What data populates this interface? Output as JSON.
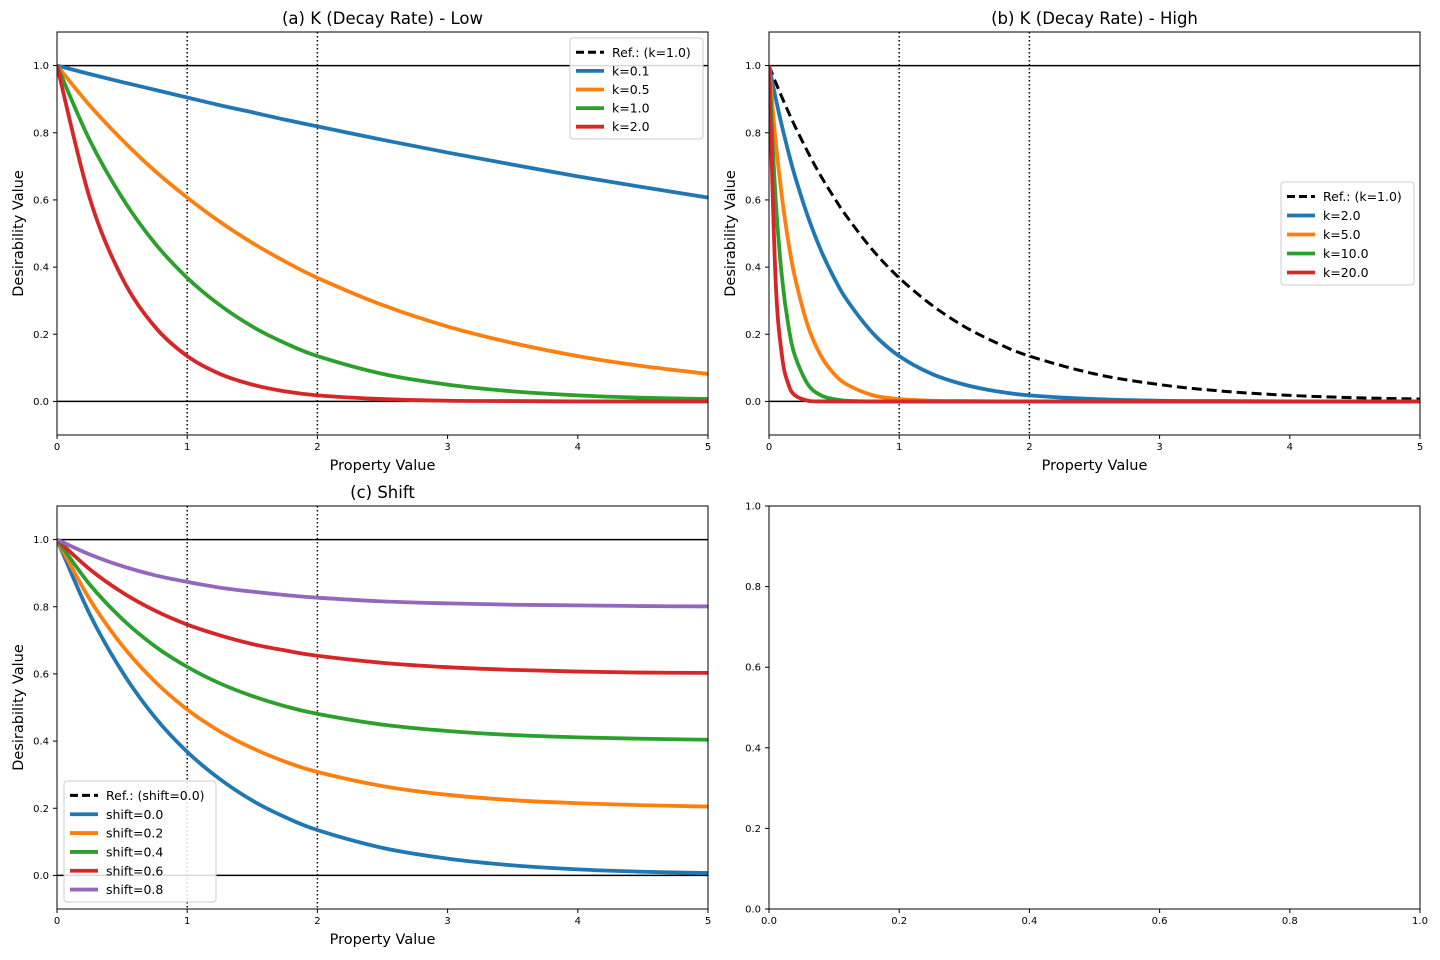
{
  "colors": {
    "ref": "#000000",
    "c0": "#1f77b4",
    "c1": "#ff7f0e",
    "c2": "#2ca02c",
    "c3": "#d62728",
    "c4": "#9467bd"
  },
  "chart_data": [
    {
      "type": "line",
      "title": "(a) K (Decay Rate) - Low",
      "xlabel": "Property Value",
      "ylabel": "Desirability Value",
      "xlim": [
        0,
        5
      ],
      "ylim": [
        -0.1,
        1.1
      ],
      "xticks": [
        0,
        1,
        2,
        3,
        4,
        5
      ],
      "yticks": [
        0.0,
        0.2,
        0.4,
        0.6,
        0.8,
        1.0
      ],
      "xtick_labels": [
        "0",
        "1",
        "2",
        "3",
        "4",
        "5"
      ],
      "ytick_labels": [
        "0.0",
        "0.2",
        "0.4",
        "0.6",
        "0.8",
        "1.0"
      ],
      "hlines": [
        0,
        1
      ],
      "vlines": [
        1,
        2
      ],
      "legend_position": "upper-right",
      "x": [
        0,
        0.25,
        0.5,
        0.75,
        1,
        1.25,
        1.5,
        1.75,
        2,
        2.5,
        3,
        3.5,
        4,
        4.5,
        5
      ],
      "series": [
        {
          "name": "Ref.: (k=1.0)",
          "color_key": "ref",
          "dashed": true,
          "values": [
            1.0,
            0.779,
            0.607,
            0.472,
            0.368,
            0.287,
            0.223,
            0.174,
            0.135,
            0.082,
            0.05,
            0.03,
            0.018,
            0.011,
            0.007
          ]
        },
        {
          "name": "k=0.1",
          "color_key": "c0",
          "values": [
            1.0,
            0.975,
            0.951,
            0.928,
            0.905,
            0.882,
            0.861,
            0.839,
            0.819,
            0.779,
            0.741,
            0.705,
            0.67,
            0.638,
            0.607
          ]
        },
        {
          "name": "k=0.5",
          "color_key": "c1",
          "values": [
            1.0,
            0.882,
            0.779,
            0.687,
            0.607,
            0.535,
            0.472,
            0.417,
            0.368,
            0.287,
            0.223,
            0.174,
            0.135,
            0.105,
            0.082
          ]
        },
        {
          "name": "k=1.0",
          "color_key": "c2",
          "values": [
            1.0,
            0.779,
            0.607,
            0.472,
            0.368,
            0.287,
            0.223,
            0.174,
            0.135,
            0.082,
            0.05,
            0.03,
            0.018,
            0.011,
            0.007
          ]
        },
        {
          "name": "k=2.0",
          "color_key": "c3",
          "values": [
            1.0,
            0.607,
            0.368,
            0.223,
            0.135,
            0.082,
            0.05,
            0.03,
            0.018,
            0.007,
            0.002,
            0.001,
            0.0,
            0.0,
            0.0
          ]
        }
      ]
    },
    {
      "type": "line",
      "title": "(b) K (Decay Rate) - High",
      "xlabel": "Property Value",
      "ylabel": "Desirability Value",
      "xlim": [
        0,
        5
      ],
      "ylim": [
        -0.1,
        1.1
      ],
      "xticks": [
        0,
        1,
        2,
        3,
        4,
        5
      ],
      "yticks": [
        0.0,
        0.2,
        0.4,
        0.6,
        0.8,
        1.0
      ],
      "xtick_labels": [
        "0",
        "1",
        "2",
        "3",
        "4",
        "5"
      ],
      "ytick_labels": [
        "0.0",
        "0.2",
        "0.4",
        "0.6",
        "0.8",
        "1.0"
      ],
      "hlines": [
        0,
        1
      ],
      "vlines": [
        1,
        2
      ],
      "legend_position": "center-right",
      "x": [
        0,
        0.05,
        0.1,
        0.15,
        0.2,
        0.3,
        0.4,
        0.5,
        0.6,
        0.8,
        1,
        1.25,
        1.5,
        1.75,
        2,
        2.5,
        3,
        3.5,
        4,
        4.5,
        5
      ],
      "series": [
        {
          "name": "Ref.: (k=1.0)",
          "color_key": "ref",
          "dashed": true,
          "values": [
            1.0,
            0.951,
            0.905,
            0.861,
            0.819,
            0.741,
            0.67,
            0.607,
            0.549,
            0.449,
            0.368,
            0.287,
            0.223,
            0.174,
            0.135,
            0.082,
            0.05,
            0.03,
            0.018,
            0.011,
            0.007
          ]
        },
        {
          "name": "k=2.0",
          "color_key": "c0",
          "values": [
            1.0,
            0.905,
            0.819,
            0.741,
            0.67,
            0.549,
            0.449,
            0.368,
            0.301,
            0.202,
            0.135,
            0.082,
            0.05,
            0.03,
            0.018,
            0.007,
            0.002,
            0.001,
            0.0,
            0.0,
            0.0
          ]
        },
        {
          "name": "k=5.0",
          "color_key": "c1",
          "values": [
            1.0,
            0.779,
            0.607,
            0.472,
            0.368,
            0.223,
            0.135,
            0.082,
            0.05,
            0.018,
            0.007,
            0.002,
            0.001,
            0.0,
            0.0,
            0.0,
            0.0,
            0.0,
            0.0,
            0.0,
            0.0
          ]
        },
        {
          "name": "k=10.0",
          "color_key": "c2",
          "values": [
            1.0,
            0.607,
            0.368,
            0.223,
            0.135,
            0.05,
            0.018,
            0.007,
            0.002,
            0.0,
            0.0,
            0.0,
            0.0,
            0.0,
            0.0,
            0.0,
            0.0,
            0.0,
            0.0,
            0.0,
            0.0
          ]
        },
        {
          "name": "k=20.0",
          "color_key": "c3",
          "values": [
            1.0,
            0.368,
            0.135,
            0.05,
            0.018,
            0.002,
            0.0,
            0.0,
            0.0,
            0.0,
            0.0,
            0.0,
            0.0,
            0.0,
            0.0,
            0.0,
            0.0,
            0.0,
            0.0,
            0.0,
            0.0
          ]
        }
      ]
    },
    {
      "type": "line",
      "title": "(c) Shift",
      "xlabel": "Property Value",
      "ylabel": "Desirability Value",
      "xlim": [
        0,
        5
      ],
      "ylim": [
        -0.1,
        1.1
      ],
      "xticks": [
        0,
        1,
        2,
        3,
        4,
        5
      ],
      "yticks": [
        0.0,
        0.2,
        0.4,
        0.6,
        0.8,
        1.0
      ],
      "xtick_labels": [
        "0",
        "1",
        "2",
        "3",
        "4",
        "5"
      ],
      "ytick_labels": [
        "0.0",
        "0.2",
        "0.4",
        "0.6",
        "0.8",
        "1.0"
      ],
      "hlines": [
        0,
        1
      ],
      "vlines": [
        1,
        2
      ],
      "legend_position": "lower-left",
      "x": [
        0,
        0.25,
        0.5,
        0.75,
        1,
        1.25,
        1.5,
        1.75,
        2,
        2.5,
        3,
        3.5,
        4,
        4.5,
        5
      ],
      "series": [
        {
          "name": "Ref.: (shift=0.0)",
          "color_key": "ref",
          "dashed": true,
          "values": [
            1.0,
            0.779,
            0.607,
            0.472,
            0.368,
            0.287,
            0.223,
            0.174,
            0.135,
            0.082,
            0.05,
            0.03,
            0.018,
            0.011,
            0.007
          ]
        },
        {
          "name": "shift=0.0",
          "color_key": "c0",
          "values": [
            1.0,
            0.779,
            0.607,
            0.472,
            0.368,
            0.287,
            0.223,
            0.174,
            0.135,
            0.082,
            0.05,
            0.03,
            0.018,
            0.011,
            0.007
          ]
        },
        {
          "name": "shift=0.2",
          "color_key": "c1",
          "values": [
            1.0,
            0.823,
            0.685,
            0.578,
            0.494,
            0.429,
            0.379,
            0.339,
            0.308,
            0.266,
            0.24,
            0.224,
            0.215,
            0.209,
            0.205
          ]
        },
        {
          "name": "shift=0.4",
          "color_key": "c2",
          "values": [
            1.0,
            0.867,
            0.764,
            0.683,
            0.621,
            0.572,
            0.534,
            0.504,
            0.481,
            0.449,
            0.43,
            0.418,
            0.411,
            0.407,
            0.404
          ]
        },
        {
          "name": "shift=0.6",
          "color_key": "c3",
          "values": [
            1.0,
            0.912,
            0.843,
            0.789,
            0.747,
            0.715,
            0.689,
            0.67,
            0.654,
            0.633,
            0.62,
            0.612,
            0.607,
            0.604,
            0.603
          ]
        },
        {
          "name": "shift=0.8",
          "color_key": "c4",
          "values": [
            1.0,
            0.956,
            0.921,
            0.894,
            0.874,
            0.857,
            0.845,
            0.835,
            0.827,
            0.816,
            0.81,
            0.806,
            0.804,
            0.802,
            0.801
          ]
        }
      ]
    },
    {
      "type": "line",
      "title": "",
      "xlabel": "",
      "ylabel": "",
      "xlim": [
        0,
        1
      ],
      "ylim": [
        0,
        1
      ],
      "xticks": [
        0,
        0.2,
        0.4,
        0.6,
        0.8,
        1.0
      ],
      "yticks": [
        0,
        0.2,
        0.4,
        0.6,
        0.8,
        1.0
      ],
      "xtick_labels": [
        "0.0",
        "0.2",
        "0.4",
        "0.6",
        "0.8",
        "1.0"
      ],
      "ytick_labels": [
        "0.0",
        "0.2",
        "0.4",
        "0.6",
        "0.8",
        "1.0"
      ],
      "hlines": [],
      "vlines": [],
      "legend_position": "",
      "x": [],
      "series": []
    }
  ]
}
